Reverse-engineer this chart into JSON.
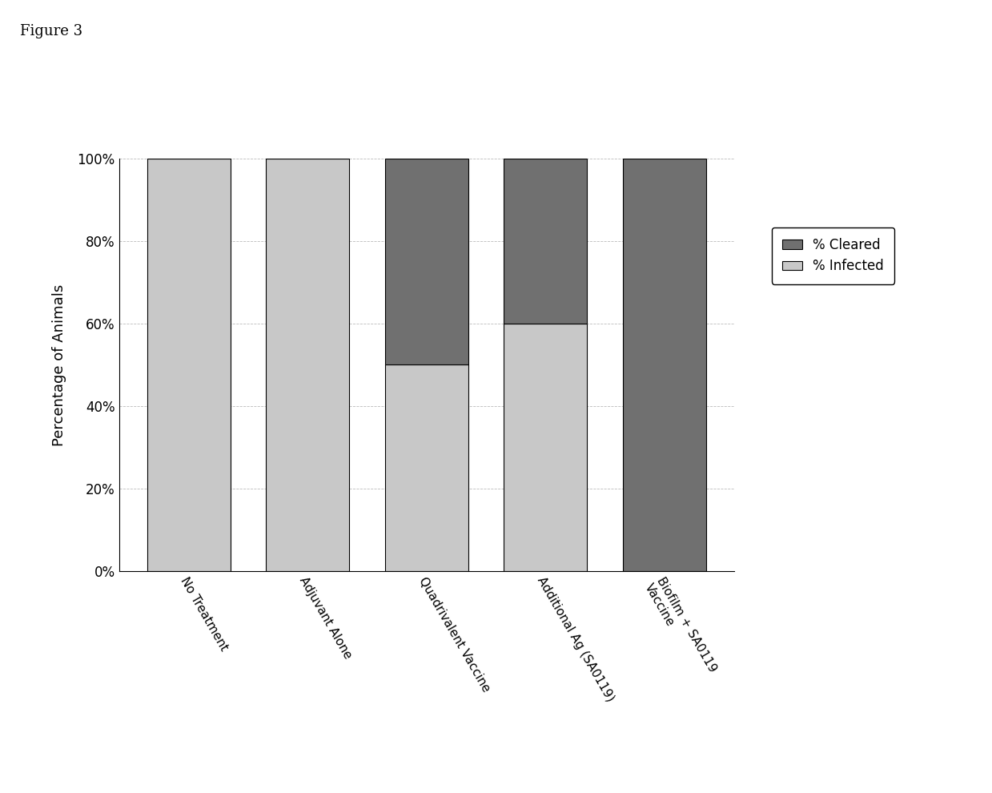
{
  "categories": [
    "No Treatment",
    "Adjuvant Alone",
    "Quadrivalent Vaccine",
    "Additional Ag (SA0119)",
    "Biofilm + SA0119\nVaccine"
  ],
  "infected": [
    100,
    100,
    50,
    60,
    0
  ],
  "cleared": [
    0,
    0,
    50,
    40,
    100
  ],
  "color_infected": "#c8c8c8",
  "color_cleared": "#707070",
  "ylabel": "Percentage of Animals",
  "yticks": [
    0,
    20,
    40,
    60,
    80,
    100
  ],
  "ytick_labels": [
    "0%",
    "20%",
    "40%",
    "60%",
    "80%",
    "100%"
  ],
  "legend_cleared": "% Cleared",
  "legend_infected": "% Infected",
  "figure_label": "Figure 3",
  "background_color": "#ffffff",
  "bar_width": 0.7,
  "grid_color": "#aaaaaa"
}
